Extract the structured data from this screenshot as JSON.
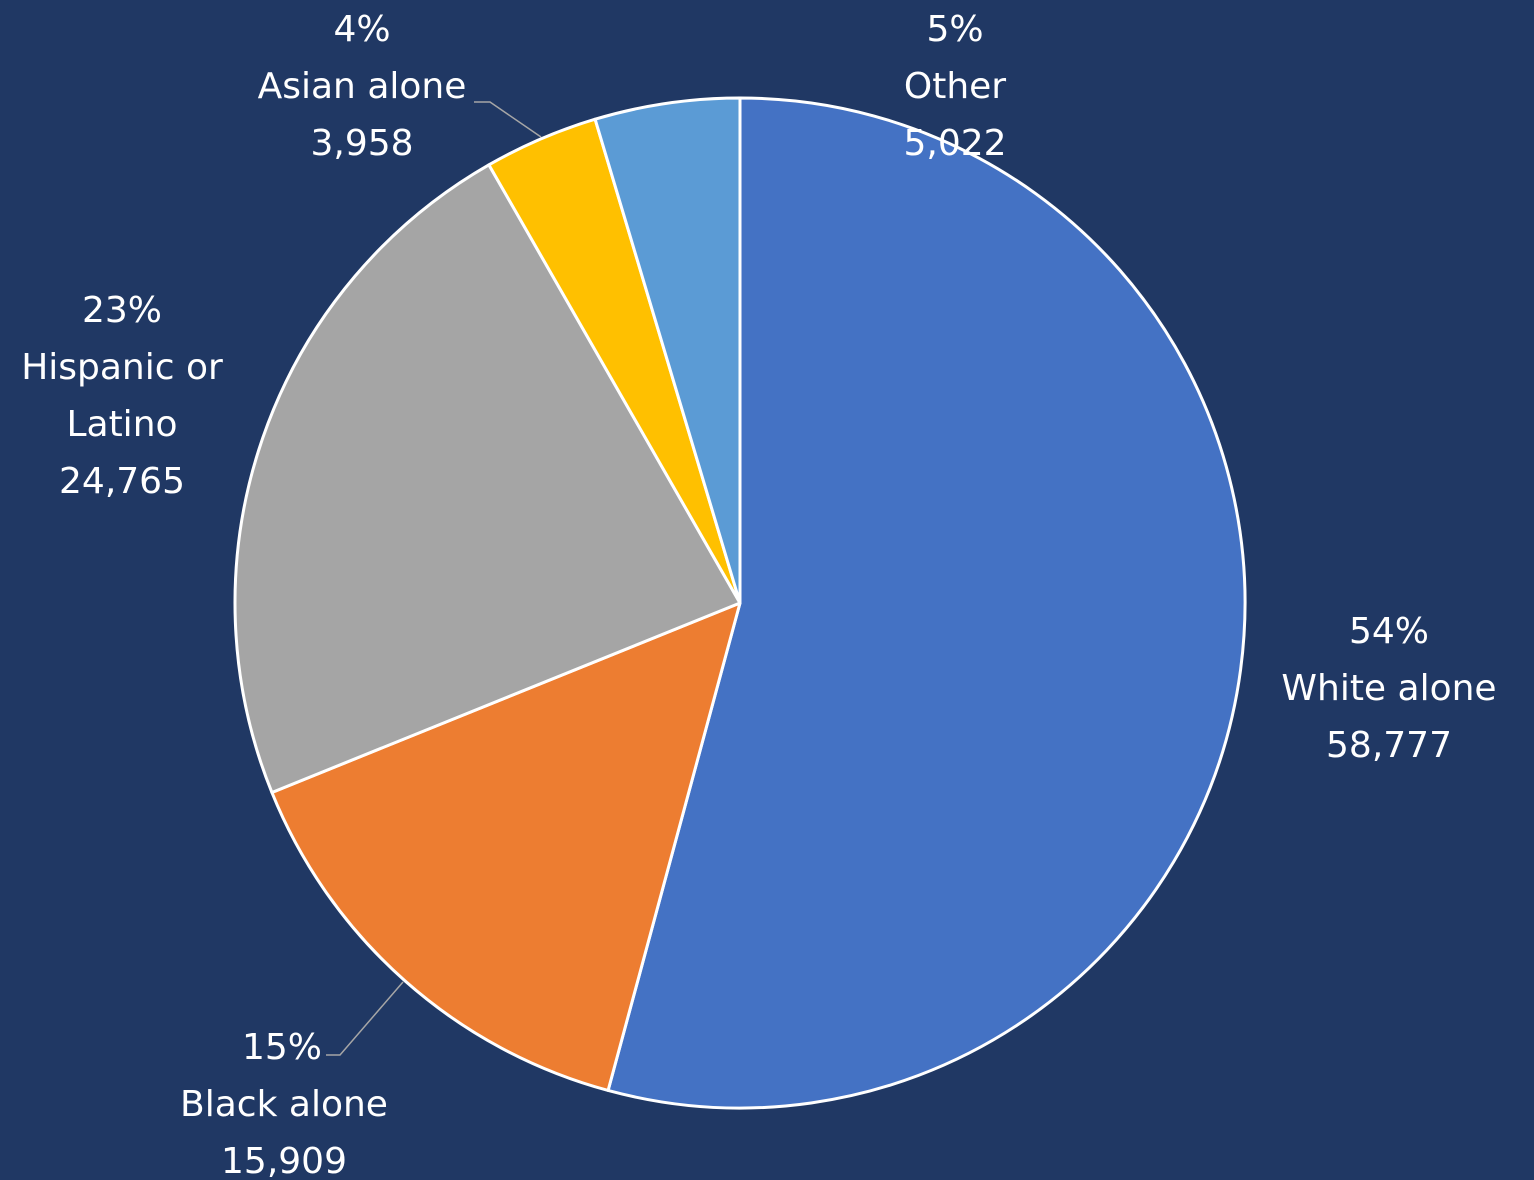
{
  "chart_data": {
    "type": "pie",
    "start_angle_deg": 0,
    "direction": "clockwise",
    "slices": [
      {
        "label": "White alone",
        "value": 58777,
        "value_label": "58,777",
        "percent_label": "54%",
        "color": "#4472C4"
      },
      {
        "label": "Black alone",
        "value": 15909,
        "value_label": "15,909",
        "percent_label": "15%",
        "color": "#ED7D31"
      },
      {
        "label": "Hispanic or Latino",
        "value": 24765,
        "value_label": "24,765",
        "percent_label": "23%",
        "color": "#A5A5A5"
      },
      {
        "label": "Asian alone",
        "value": 3958,
        "value_label": "3,958",
        "percent_label": "4%",
        "color": "#FFC000"
      },
      {
        "label": "Other",
        "value": 5022,
        "value_label": "5,022",
        "percent_label": "5%",
        "color": "#5B9BD5"
      }
    ]
  },
  "colors": {
    "background": "#203864",
    "slice_border": "#FFFFFF",
    "label_text": "#FFFFFF",
    "leader_line": "#A6A6A6"
  }
}
